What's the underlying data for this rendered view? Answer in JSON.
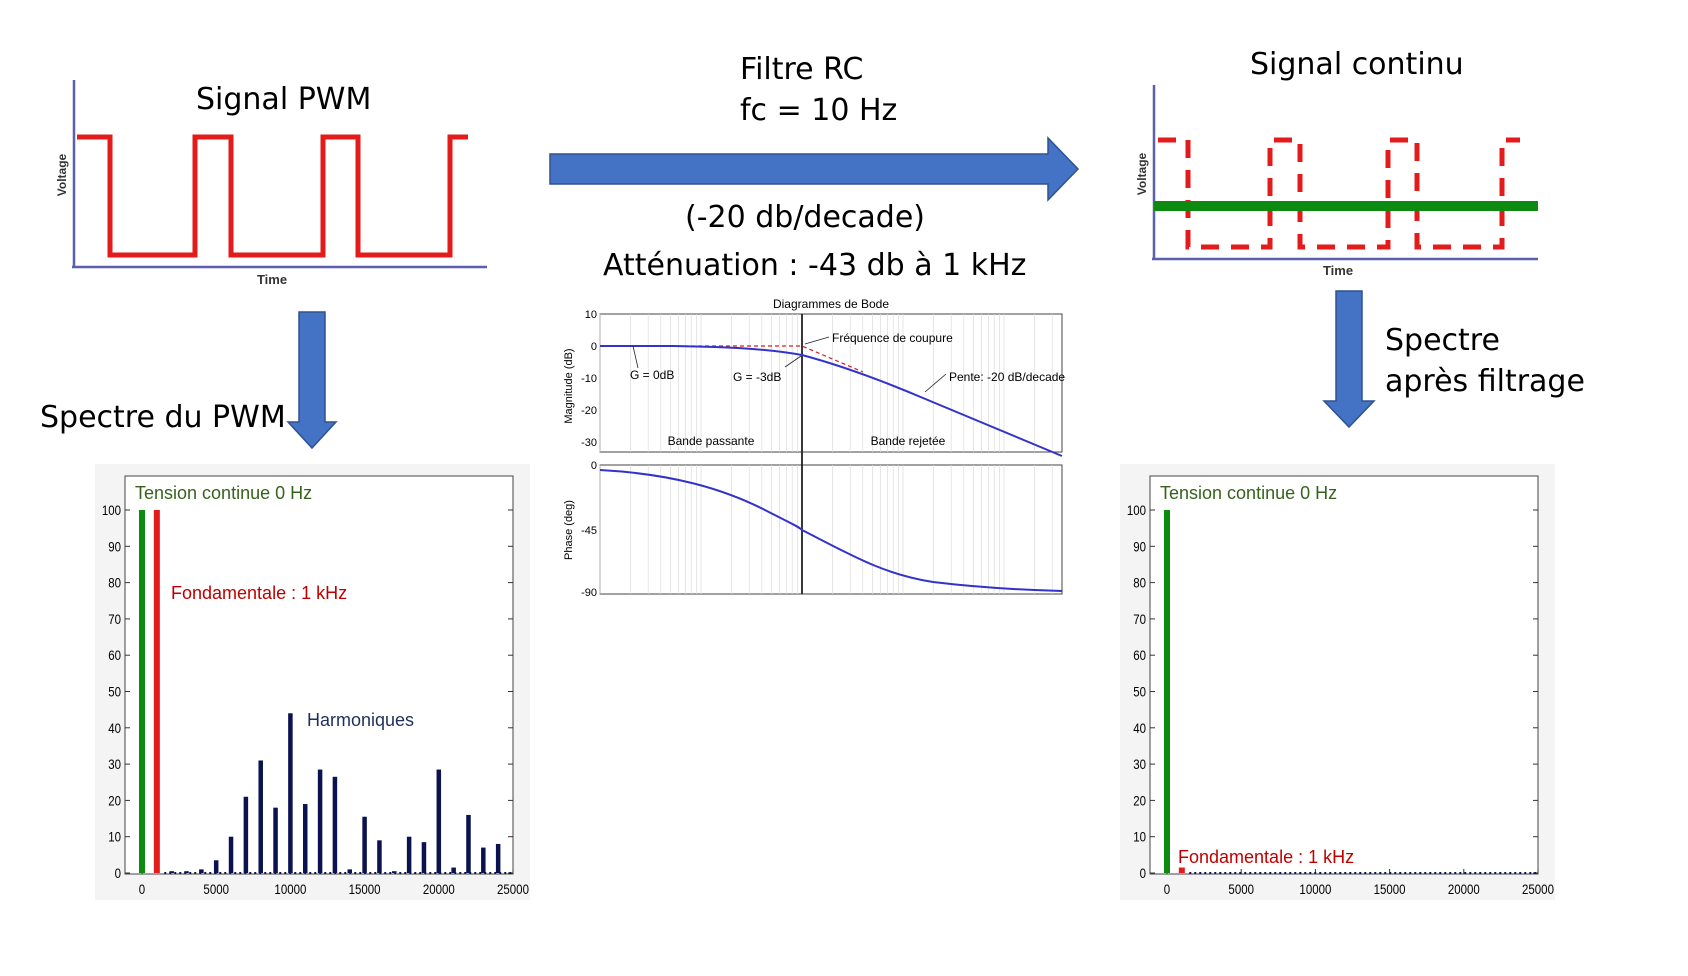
{
  "colors": {
    "pwm_red": "#e31b1b",
    "dc_green": "#0d8a10",
    "arrow_blue": "#4472c4",
    "harmonic_navy": "#0b1250",
    "label_green": "#36631c",
    "label_red": "#c00000",
    "label_navy": "#1f2f5c",
    "bode_blue": "#3333cc"
  },
  "pwm_signal": {
    "title": "Signal PWM",
    "xlabel": "Time",
    "ylabel": "Voltage"
  },
  "filter": {
    "line1": "Filtre RC",
    "line2": "fc = 10 Hz",
    "slope": "(-20 db/decade)",
    "attenuation": "Atténuation : -43 db à 1 kHz"
  },
  "dc_signal": {
    "title": "Signal continu",
    "xlabel": "Time",
    "ylabel": "Voltage"
  },
  "pwm_spectrum_label": "Spectre du PWM",
  "filtered_spectrum_label": {
    "line1": "Spectre",
    "line2": "après filtrage"
  },
  "bode": {
    "title": "Diagrammes de Bode",
    "mag_ylabel": "Magnitude (dB)",
    "phase_ylabel": "Phase (deg)",
    "mag_ticks": [
      "10",
      "0",
      "-10",
      "-20",
      "-30"
    ],
    "phase_ticks": [
      "0",
      "-45",
      "-90"
    ],
    "annotations": {
      "cutoff": "Fréquence de coupure",
      "g0": "G = 0dB",
      "g3": "G = -3dB",
      "slope": "Pente: -20 dB/decade",
      "passband": "Bande passante",
      "stopband": "Bande rejetée"
    }
  },
  "chart_data": [
    {
      "type": "bar",
      "name": "pwm_spectrum",
      "xlim": [
        0,
        25000
      ],
      "ylim": [
        0,
        100
      ],
      "xticks": [
        "0",
        "5000",
        "10000",
        "15000",
        "20000",
        "25000"
      ],
      "yticks": [
        "0",
        "10",
        "20",
        "30",
        "40",
        "50",
        "60",
        "70",
        "80",
        "90",
        "100"
      ],
      "annotations": {
        "dc": "Tension continue 0 Hz",
        "fundamental": "Fondamentale : 1 kHz",
        "harmonics": "Harmoniques"
      },
      "dc_bar": {
        "x": 0,
        "y": 100
      },
      "fundamental_bar": {
        "x": 1000,
        "y": 100
      },
      "harmonics": [
        {
          "x": 2000,
          "y": 0.5
        },
        {
          "x": 3000,
          "y": 0.5
        },
        {
          "x": 4000,
          "y": 1
        },
        {
          "x": 5000,
          "y": 3.5
        },
        {
          "x": 6000,
          "y": 10
        },
        {
          "x": 7000,
          "y": 21
        },
        {
          "x": 8000,
          "y": 31
        },
        {
          "x": 9000,
          "y": 18
        },
        {
          "x": 10000,
          "y": 44
        },
        {
          "x": 11000,
          "y": 19
        },
        {
          "x": 12000,
          "y": 28.5
        },
        {
          "x": 13000,
          "y": 26.5
        },
        {
          "x": 14000,
          "y": 1
        },
        {
          "x": 15000,
          "y": 15.5
        },
        {
          "x": 16000,
          "y": 9
        },
        {
          "x": 17000,
          "y": 0.5
        },
        {
          "x": 18000,
          "y": 10
        },
        {
          "x": 19000,
          "y": 8.5
        },
        {
          "x": 20000,
          "y": 28.5
        },
        {
          "x": 21000,
          "y": 1.5
        },
        {
          "x": 22000,
          "y": 16
        },
        {
          "x": 23000,
          "y": 7
        },
        {
          "x": 24000,
          "y": 8
        }
      ]
    },
    {
      "type": "bar",
      "name": "filtered_spectrum",
      "xlim": [
        0,
        25000
      ],
      "ylim": [
        0,
        100
      ],
      "xticks": [
        "0",
        "5000",
        "10000",
        "15000",
        "20000",
        "25000"
      ],
      "yticks": [
        "0",
        "10",
        "20",
        "30",
        "40",
        "50",
        "60",
        "70",
        "80",
        "90",
        "100"
      ],
      "annotations": {
        "dc": "Tension continue 0 Hz",
        "fundamental": "Fondamentale : 1 kHz"
      },
      "dc_bar": {
        "x": 0,
        "y": 100
      },
      "fundamental_bar": {
        "x": 1000,
        "y": 1.5
      },
      "harmonics": []
    }
  ]
}
